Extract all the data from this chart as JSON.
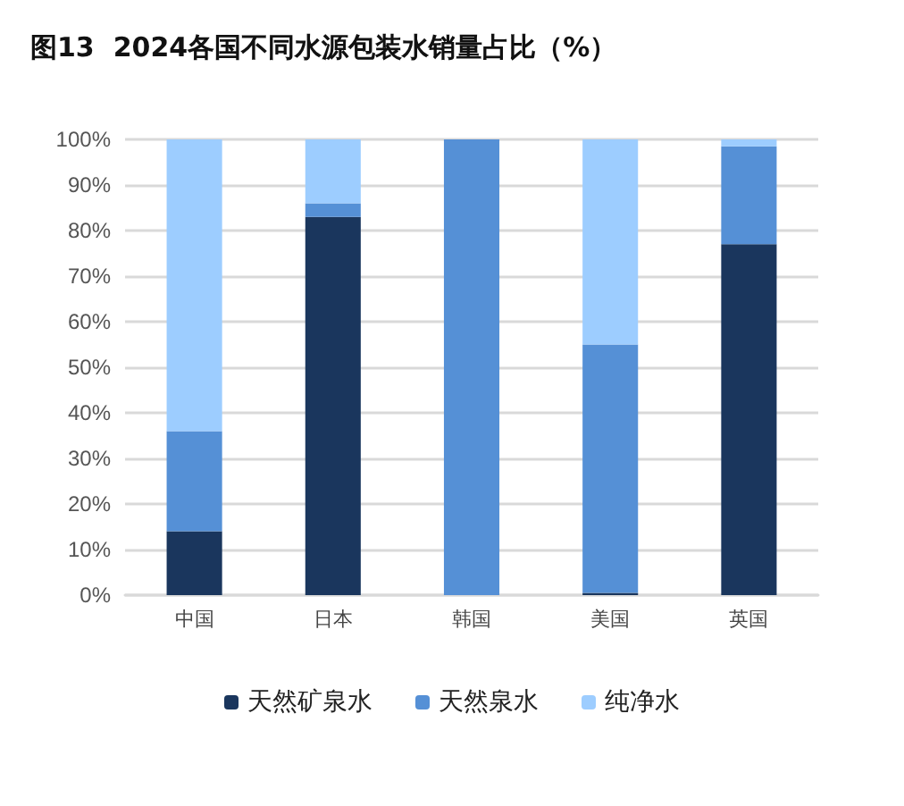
{
  "chart_data": {
    "type": "bar",
    "title": "图13  2024各国不同水源包装水销量占比（%）",
    "categories": [
      "中国",
      "日本",
      "韩国",
      "美国",
      "英国"
    ],
    "stacked": true,
    "legend": "bottom",
    "grid": "y",
    "ylim": [
      0,
      100
    ],
    "yticks": [
      {
        "value": 0,
        "label": "0%"
      },
      {
        "value": 10,
        "label": "10%"
      },
      {
        "value": 20,
        "label": "20%"
      },
      {
        "value": 30,
        "label": "30%"
      },
      {
        "value": 40,
        "label": "40%"
      },
      {
        "value": 50,
        "label": "50%"
      },
      {
        "value": 60,
        "label": "60%"
      },
      {
        "value": 70,
        "label": "70%"
      },
      {
        "value": 80,
        "label": "80%"
      },
      {
        "value": 90,
        "label": "90%"
      },
      {
        "value": 100,
        "label": "100%"
      }
    ],
    "series": [
      {
        "name": "天然矿泉水",
        "color": "#1a365d",
        "values": [
          14,
          83,
          0,
          0.5,
          77
        ]
      },
      {
        "name": "天然泉水",
        "color": "#5590d6",
        "values": [
          22,
          3,
          100,
          54.5,
          21.5
        ]
      },
      {
        "name": "纯净水",
        "color": "#9dcdff",
        "values": [
          64,
          14,
          0,
          45,
          1.5
        ]
      }
    ]
  }
}
